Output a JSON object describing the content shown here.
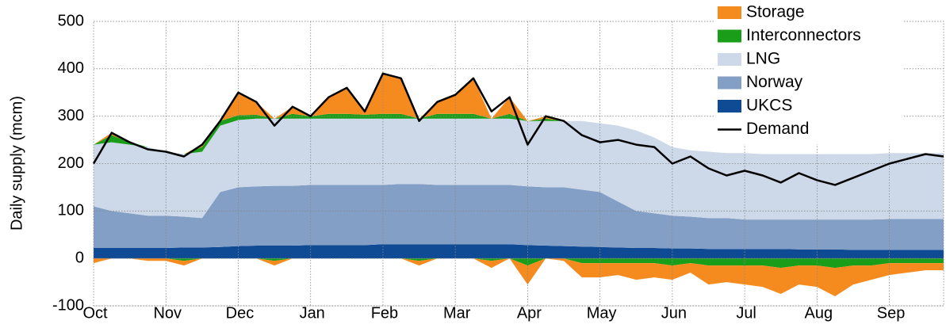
{
  "chart_data": {
    "type": "stacked-area",
    "y_label": "Daily supply (mcm)",
    "categories": [
      "Oct",
      null,
      null,
      null,
      "Nov",
      null,
      null,
      null,
      "Dec",
      null,
      null,
      null,
      "Jan",
      null,
      null,
      null,
      "Feb",
      null,
      null,
      null,
      "Mar",
      null,
      null,
      null,
      "Apr",
      null,
      null,
      null,
      "May",
      null,
      null,
      null,
      "Jun",
      null,
      null,
      null,
      "Jul",
      null,
      null,
      null,
      "Aug",
      null,
      null,
      null,
      "Sep",
      null,
      null,
      null
    ],
    "series": [
      {
        "name": "UKCS",
        "color": "#0f4a94",
        "values": [
          22,
          22,
          22,
          22,
          22,
          23,
          23,
          24,
          26,
          27,
          27,
          27,
          28,
          28,
          28,
          28,
          30,
          30,
          30,
          30,
          30,
          30,
          30,
          30,
          28,
          27,
          26,
          25,
          24,
          23,
          22,
          22,
          21,
          21,
          20,
          20,
          20,
          20,
          20,
          19,
          19,
          19,
          18,
          18,
          18,
          18,
          18,
          18
        ]
      },
      {
        "name": "Norway",
        "color": "#849fc6",
        "values": [
          88,
          78,
          73,
          68,
          68,
          65,
          62,
          116,
          124,
          125,
          126,
          126,
          127,
          127,
          127,
          127,
          125,
          127,
          127,
          125,
          125,
          125,
          125,
          125,
          124,
          123,
          124,
          120,
          116,
          97,
          78,
          73,
          69,
          67,
          65,
          65,
          62,
          62,
          62,
          63,
          63,
          63,
          64,
          64,
          65,
          65,
          65,
          65
        ]
      },
      {
        "name": "LNG",
        "color": "#cdd8e8",
        "values": [
          130,
          145,
          145,
          145,
          135,
          132,
          140,
          140,
          142,
          143,
          142,
          142,
          140,
          140,
          140,
          140,
          140,
          138,
          138,
          140,
          140,
          140,
          140,
          140,
          138,
          140,
          140,
          145,
          145,
          160,
          170,
          160,
          145,
          140,
          140,
          137,
          140,
          138,
          138,
          138,
          138,
          138,
          138,
          138,
          139,
          139,
          139,
          139
        ]
      },
      {
        "name": "Interconnectors",
        "color": "#1a9e1a",
        "values": [
          0,
          15,
          5,
          0,
          0,
          -5,
          10,
          10,
          10,
          8,
          -5,
          10,
          5,
          10,
          10,
          8,
          10,
          10,
          -5,
          10,
          10,
          10,
          -5,
          10,
          -15,
          5,
          0,
          -10,
          -10,
          -10,
          -10,
          -10,
          -15,
          -10,
          -15,
          -15,
          -15,
          -15,
          -20,
          -15,
          -15,
          -20,
          -15,
          -15,
          -10,
          -10,
          -10,
          -10
        ]
      },
      {
        "name": "Storage",
        "color": "#f58b1f",
        "values": [
          -10,
          5,
          0,
          -5,
          -5,
          -10,
          5,
          0,
          48,
          27,
          -10,
          15,
          0,
          35,
          55,
          7,
          85,
          75,
          -10,
          25,
          40,
          75,
          -15,
          35,
          -40,
          5,
          -5,
          -30,
          -30,
          -25,
          -35,
          -30,
          -30,
          -20,
          -40,
          -35,
          -40,
          -45,
          -55,
          -40,
          -45,
          -60,
          -40,
          -30,
          -25,
          -20,
          -15,
          -15
        ]
      },
      {
        "name": "Demand",
        "type": "line",
        "color": "#000000",
        "values": [
          200,
          265,
          245,
          230,
          225,
          215,
          240,
          290,
          350,
          330,
          280,
          320,
          300,
          340,
          360,
          310,
          390,
          380,
          290,
          330,
          345,
          380,
          310,
          340,
          240,
          300,
          290,
          260,
          245,
          250,
          240,
          235,
          200,
          215,
          190,
          175,
          185,
          175,
          160,
          180,
          165,
          155,
          170,
          185,
          200,
          210,
          220,
          215
        ]
      }
    ],
    "ylim": [
      -100,
      500
    ],
    "yticks": [
      -100,
      0,
      100,
      200,
      300,
      400,
      500
    ],
    "grid": true,
    "legend": "upper right"
  }
}
